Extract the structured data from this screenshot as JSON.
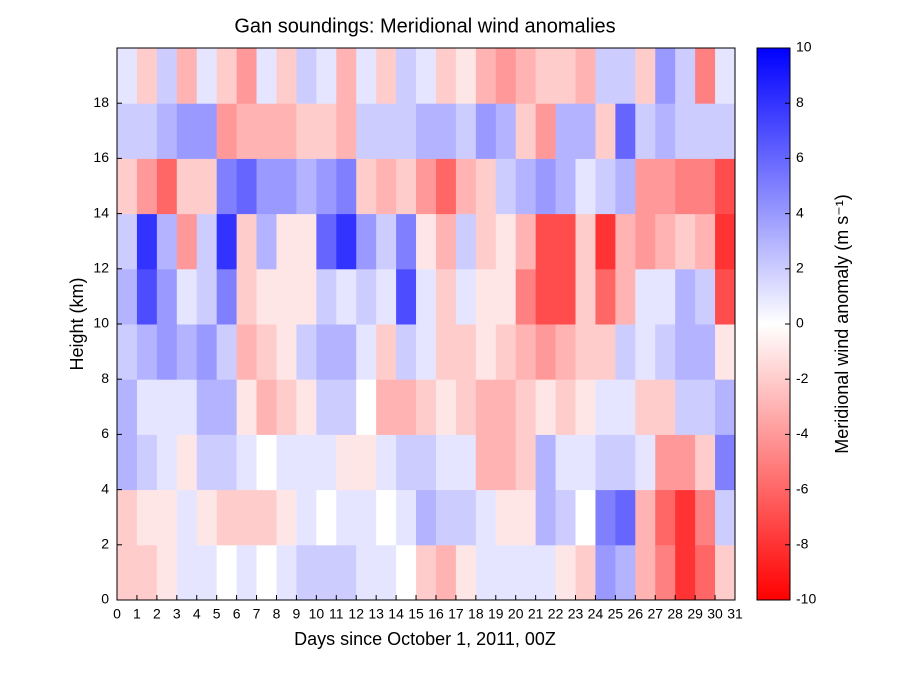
{
  "chart_data": {
    "type": "heatmap",
    "title": "Gan soundings:  Meridional wind anomalies",
    "xlabel": "Days since October 1, 2011, 00Z",
    "ylabel": "Height (km)",
    "colorbar_label": "Meridional wind anomaly (m s⁻¹)",
    "xlim": [
      0,
      31
    ],
    "ylim": [
      0,
      20
    ],
    "clim": [
      -10,
      10
    ],
    "xticks": [
      0,
      1,
      2,
      3,
      4,
      5,
      6,
      7,
      8,
      9,
      10,
      11,
      12,
      13,
      14,
      15,
      16,
      17,
      18,
      19,
      20,
      21,
      22,
      23,
      24,
      25,
      26,
      27,
      28,
      29,
      30,
      31
    ],
    "yticks": [
      0,
      2,
      4,
      6,
      8,
      10,
      12,
      14,
      16,
      18
    ],
    "cticks": [
      -10,
      -8,
      -6,
      -4,
      -2,
      0,
      2,
      4,
      6,
      8,
      10
    ],
    "colors": {
      "low": "#ff0000",
      "mid": "#ffffff",
      "high": "#0000ff"
    },
    "xbins": [
      0,
      1,
      2,
      3,
      4,
      5,
      6,
      7,
      8,
      9,
      10,
      11,
      12,
      13,
      14,
      15,
      16,
      17,
      18,
      19,
      20,
      21,
      22,
      23,
      24,
      25,
      26,
      27,
      28,
      29,
      30,
      31
    ],
    "ybins": [
      0,
      2,
      4,
      6,
      8,
      10,
      12,
      14,
      16,
      18,
      20
    ],
    "values": [
      [
        -2,
        -2,
        3,
        3,
        2,
        3,
        2,
        -2,
        2,
        1
      ],
      [
        -2,
        -1,
        2,
        1,
        3,
        7,
        8,
        -4,
        2,
        -2
      ],
      [
        -1,
        -1,
        1,
        1,
        4,
        4,
        3,
        -6,
        3,
        2
      ],
      [
        1,
        1,
        -1,
        1,
        3,
        1,
        -4,
        -2,
        4,
        -3
      ],
      [
        1,
        -1,
        2,
        3,
        4,
        2,
        2,
        -2,
        4,
        1
      ],
      [
        0,
        -2,
        2,
        3,
        2,
        5,
        8,
        5,
        -4,
        -2
      ],
      [
        1,
        -2,
        1,
        -1,
        -3,
        -2,
        -2,
        6,
        -3,
        -4
      ],
      [
        0,
        -2,
        0,
        -3,
        -2,
        -1,
        3,
        4,
        -3,
        1
      ],
      [
        1,
        -1,
        1,
        -2,
        -1,
        -1,
        -1,
        4,
        -3,
        -2
      ],
      [
        2,
        1,
        1,
        -1,
        2,
        -1,
        -1,
        3,
        -2,
        2
      ],
      [
        2,
        0,
        1,
        2,
        3,
        2,
        6,
        4,
        -2,
        1
      ],
      [
        2,
        1,
        -1,
        2,
        3,
        1,
        8,
        5,
        -3,
        -3
      ],
      [
        1,
        1,
        -1,
        0,
        1,
        2,
        4,
        -2,
        2,
        1
      ],
      [
        1,
        0,
        1,
        -3,
        -2,
        1,
        2,
        -3,
        2,
        -2
      ],
      [
        0,
        1,
        2,
        -3,
        2,
        7,
        5,
        -2,
        2,
        2
      ],
      [
        -2,
        3,
        2,
        -2,
        1,
        1,
        -1,
        -4,
        3,
        1
      ],
      [
        -3,
        2,
        1,
        -1,
        -2,
        -2,
        -3,
        -6,
        3,
        -2
      ],
      [
        -1,
        2,
        1,
        -2,
        -2,
        1,
        2,
        -3,
        2,
        -1
      ],
      [
        1,
        1,
        -3,
        -3,
        -1,
        -1,
        -2,
        -2,
        4,
        -3
      ],
      [
        1,
        -1,
        -3,
        -3,
        -2,
        -1,
        -1,
        2,
        3,
        -4
      ],
      [
        1,
        -1,
        -2,
        -2,
        -3,
        -5,
        -3,
        3,
        -2,
        -3
      ],
      [
        1,
        3,
        3,
        -1,
        -4,
        -7,
        -7,
        4,
        -4,
        -2
      ],
      [
        -1,
        2,
        1,
        -2,
        -3,
        -7,
        -7,
        3,
        3,
        -2
      ],
      [
        -2,
        0,
        1,
        -1,
        -2,
        -2,
        -2,
        1,
        3,
        -3
      ],
      [
        4,
        5,
        2,
        1,
        -2,
        -6,
        -8,
        2,
        -2,
        2
      ],
      [
        3,
        6,
        2,
        1,
        2,
        -3,
        -3,
        3,
        6,
        2
      ],
      [
        -3,
        -3,
        1,
        -2,
        1,
        1,
        -4,
        -4,
        2,
        -2
      ],
      [
        -5,
        -6,
        -4,
        -2,
        2,
        1,
        -3,
        -4,
        3,
        4
      ],
      [
        -8,
        -8,
        -4,
        2,
        3,
        3,
        -2,
        -5,
        2,
        2
      ],
      [
        -6,
        -5,
        -2,
        2,
        3,
        2,
        -3,
        -5,
        2,
        -5
      ],
      [
        -2,
        2,
        5,
        3,
        -1,
        -7,
        -8,
        -7,
        2,
        1
      ]
    ]
  }
}
